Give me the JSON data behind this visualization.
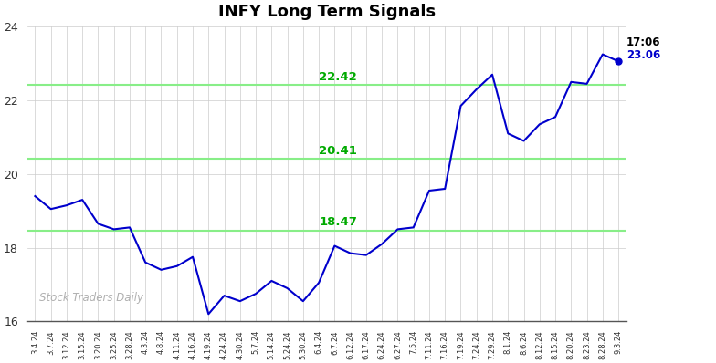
{
  "title": "INFY Long Term Signals",
  "background_color": "#ffffff",
  "line_color": "#0000cc",
  "grid_color": "#cccccc",
  "hlines": [
    18.47,
    20.41,
    22.42
  ],
  "hline_color": "#88ee88",
  "hline_labels": [
    "18.47",
    "20.41",
    "22.42"
  ],
  "hline_label_color": "#00aa00",
  "last_price": 23.06,
  "last_time": "17:06",
  "last_dot_color": "#0000cc",
  "watermark": "Stock Traders Daily",
  "watermark_color": "#b0b0b0",
  "ylim": [
    16,
    24
  ],
  "yticks": [
    16,
    18,
    20,
    22,
    24
  ],
  "x_labels": [
    "3.4.24",
    "3.7.24",
    "3.12.24",
    "3.15.24",
    "3.20.24",
    "3.25.24",
    "3.28.24",
    "4.3.24",
    "4.8.24",
    "4.11.24",
    "4.16.24",
    "4.19.24",
    "4.24.24",
    "4.30.24",
    "5.7.24",
    "5.14.24",
    "5.24.24",
    "5.30.24",
    "6.4.24",
    "6.7.24",
    "6.12.24",
    "6.17.24",
    "6.24.24",
    "6.27.24",
    "7.5.24",
    "7.11.24",
    "7.16.24",
    "7.19.24",
    "7.24.24",
    "7.29.24",
    "8.1.24",
    "8.6.24",
    "8.12.24",
    "8.15.24",
    "8.20.24",
    "8.23.24",
    "8.28.24",
    "9.3.24"
  ],
  "y_values": [
    19.4,
    19.05,
    19.15,
    19.3,
    18.65,
    18.5,
    18.55,
    17.6,
    17.4,
    17.5,
    17.75,
    16.2,
    16.7,
    16.55,
    16.75,
    17.1,
    16.9,
    16.55,
    17.05,
    18.05,
    17.85,
    17.8,
    18.1,
    18.5,
    18.55,
    19.55,
    19.6,
    21.85,
    22.3,
    22.7,
    21.1,
    20.9,
    21.35,
    21.55,
    22.5,
    22.45,
    23.25,
    23.06
  ]
}
